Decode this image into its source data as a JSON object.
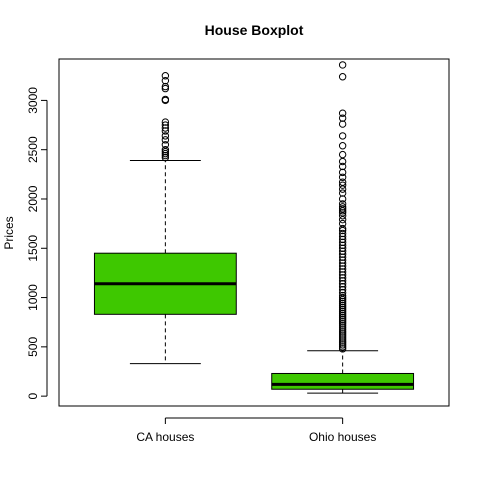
{
  "chart_data": {
    "type": "boxplot",
    "title": "House Boxplot",
    "xlabel": "",
    "ylabel": "Prices",
    "ylim": [
      -100,
      3420
    ],
    "yticks": [
      0,
      500,
      1000,
      1500,
      2000,
      2500,
      3000
    ],
    "box_color": "#3ec800",
    "grid": false,
    "legend": "none",
    "categories": [
      "CA houses",
      "Ohio houses"
    ],
    "boxes": [
      {
        "category": "CA houses",
        "whisker_low": 330,
        "q1": 830,
        "median": 1140,
        "q3": 1450,
        "whisker_high": 2390,
        "outliers": [
          2420,
          2440,
          2460,
          2480,
          2500,
          2550,
          2600,
          2640,
          2690,
          2720,
          2750,
          2780,
          3000,
          3010,
          3120,
          3140,
          3200,
          3250
        ]
      },
      {
        "category": "Ohio houses",
        "whisker_low": 30,
        "q1": 70,
        "median": 120,
        "q3": 230,
        "whisker_high": 460,
        "outliers": [
          480,
          500,
          520,
          540,
          560,
          580,
          600,
          620,
          640,
          660,
          680,
          700,
          720,
          740,
          760,
          780,
          800,
          820,
          840,
          860,
          880,
          900,
          920,
          940,
          960,
          980,
          1000,
          1020,
          1050,
          1080,
          1110,
          1140,
          1170,
          1200,
          1230,
          1260,
          1290,
          1320,
          1350,
          1380,
          1410,
          1440,
          1470,
          1500,
          1530,
          1560,
          1590,
          1620,
          1650,
          1680,
          1700,
          1750,
          1790,
          1830,
          1860,
          1880,
          1900,
          1920,
          1950,
          2000,
          2060,
          2100,
          2140,
          2170,
          2220,
          2270,
          2330,
          2380,
          2450,
          2540,
          2640,
          2760,
          2820,
          2870,
          3240,
          3360
        ]
      }
    ]
  }
}
